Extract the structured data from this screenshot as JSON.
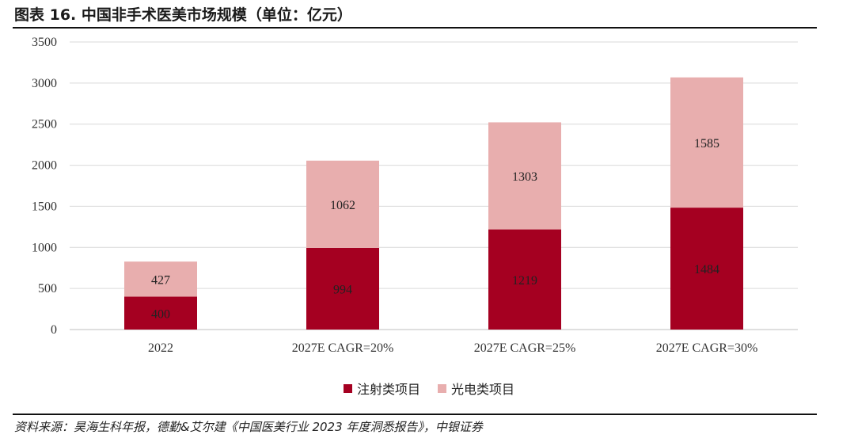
{
  "title": "图表 16.  中国非手术医美市场规模（单位：亿元）",
  "source": "资料来源：昊海生科年报，德勤&艾尔建《中国医美行业 2023 年度洞悉报告》，中银证券",
  "chart_data": {
    "type": "bar",
    "stacked": true,
    "categories": [
      "2022",
      "2027E CAGR=20%",
      "2027E CAGR=25%",
      "2027E CAGR=30%"
    ],
    "series": [
      {
        "name": "注射类项目",
        "values": [
          400,
          994,
          1219,
          1484
        ],
        "color": "#a50021"
      },
      {
        "name": "光电类项目",
        "values": [
          427,
          1062,
          1303,
          1585
        ],
        "color": "#e8aeae"
      }
    ],
    "ylim": [
      0,
      3500
    ],
    "yticks": [
      0,
      500,
      1000,
      1500,
      2000,
      2500,
      3000,
      3500
    ],
    "grid": true,
    "legend": "bottom"
  }
}
